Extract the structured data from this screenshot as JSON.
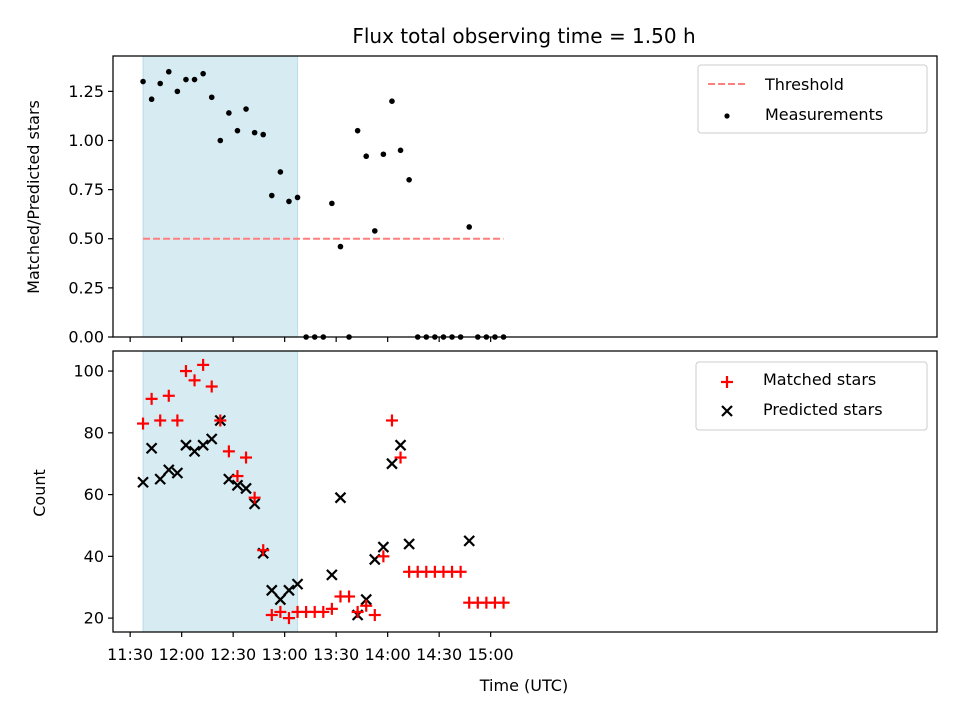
{
  "chart_data": [
    {
      "type": "scatter",
      "title": "Flux total observing time = 1.50 h",
      "xlabel": "",
      "ylabel": "Matched/Predicted stars",
      "xlim_minutes_since_midnight": [
        680,
        1160
      ],
      "ylim": [
        0,
        1.43
      ],
      "yticks": [
        0,
        0.25,
        0.5,
        0.75,
        1.0,
        1.25
      ],
      "ytick_labels": [
        "0.00",
        "0.25",
        "0.50",
        "0.75",
        "1.00",
        "1.25"
      ],
      "grid": false,
      "legend_position": "top-right",
      "shaded_interval": {
        "start": "11:37:30",
        "end": "13:07:30",
        "color": "#add8e6"
      },
      "threshold": {
        "name": "Threshold",
        "value": 0.5,
        "color": "#ff7f7f",
        "style": "dashed",
        "x_start": "11:37:30",
        "x_end": "15:07:30"
      },
      "series": [
        {
          "name": "Measurements",
          "color": "#000000",
          "marker": "dot",
          "x": [
            "11:37:30",
            "11:42:30",
            "11:47:30",
            "11:52:30",
            "11:57:30",
            "12:02:30",
            "12:07:30",
            "12:12:30",
            "12:17:30",
            "12:22:30",
            "12:27:30",
            "12:32:30",
            "12:37:30",
            "12:42:30",
            "12:47:30",
            "12:52:30",
            "12:57:30",
            "13:02:30",
            "13:07:30",
            "13:12:30",
            "13:17:30",
            "13:22:30",
            "13:27:30",
            "13:32:30",
            "13:37:30",
            "13:42:30",
            "13:47:30",
            "13:52:30",
            "13:57:30",
            "14:02:30",
            "14:07:30",
            "14:12:30",
            "14:17:30",
            "14:22:30",
            "14:27:30",
            "14:32:30",
            "14:37:30",
            "14:42:30",
            "14:47:30",
            "14:52:30",
            "14:57:30",
            "15:02:30",
            "15:07:30"
          ],
          "values": [
            1.3,
            1.21,
            1.29,
            1.35,
            1.25,
            1.31,
            1.31,
            1.34,
            1.22,
            1.0,
            1.14,
            1.05,
            1.16,
            1.04,
            1.03,
            0.72,
            0.84,
            0.69,
            0.71,
            0,
            0,
            0,
            0.68,
            0.46,
            0,
            1.05,
            0.92,
            0.54,
            0.93,
            1.2,
            0.95,
            0.8,
            0,
            0,
            0,
            0,
            0,
            0,
            0.56,
            0,
            0,
            0,
            0
          ]
        }
      ]
    },
    {
      "type": "scatter",
      "title": "",
      "xlabel": "Time (UTC)",
      "ylabel": "Count",
      "xlim_minutes_since_midnight": [
        680,
        1160
      ],
      "ylim": [
        15.5,
        106.5
      ],
      "yticks": [
        20,
        40,
        60,
        80,
        100
      ],
      "ytick_labels": [
        "20",
        "40",
        "60",
        "80",
        "100"
      ],
      "xticks": [
        "11:30",
        "12:00",
        "12:30",
        "13:00",
        "13:30",
        "14:00",
        "14:30",
        "15:00"
      ],
      "grid": false,
      "legend_position": "top-right",
      "shaded_interval": {
        "start": "11:37:30",
        "end": "13:07:30",
        "color": "#add8e6"
      },
      "series": [
        {
          "name": "Matched stars",
          "color": "#ff0000",
          "marker": "plus",
          "x": [
            "11:37:30",
            "11:42:30",
            "11:47:30",
            "11:52:30",
            "11:57:30",
            "12:02:30",
            "12:07:30",
            "12:12:30",
            "12:17:30",
            "12:22:30",
            "12:27:30",
            "12:32:30",
            "12:37:30",
            "12:42:30",
            "12:47:30",
            "12:52:30",
            "12:57:30",
            "13:02:30",
            "13:07:30",
            "13:12:30",
            "13:17:30",
            "13:22:30",
            "13:27:30",
            "13:32:30",
            "13:37:30",
            "13:42:30",
            "13:47:30",
            "13:52:30",
            "13:57:30",
            "14:02:30",
            "14:07:30",
            "14:12:30",
            "14:17:30",
            "14:22:30",
            "14:27:30",
            "14:32:30",
            "14:37:30",
            "14:42:30",
            "14:47:30",
            "14:52:30",
            "14:57:30",
            "15:02:30",
            "15:07:30"
          ],
          "values": [
            83,
            91,
            84,
            92,
            84,
            100,
            97,
            102,
            95,
            84,
            74,
            66,
            72,
            59,
            42,
            21,
            22,
            20,
            22,
            22,
            22,
            22,
            23,
            27,
            27,
            22,
            24,
            21,
            40,
            84,
            72,
            35,
            35,
            35,
            35,
            35,
            35,
            35,
            25,
            25,
            25,
            25,
            25
          ]
        },
        {
          "name": "Predicted stars",
          "color": "#000000",
          "marker": "x",
          "x": [
            "11:37:30",
            "11:42:30",
            "11:47:30",
            "11:52:30",
            "11:57:30",
            "12:02:30",
            "12:07:30",
            "12:12:30",
            "12:17:30",
            "12:22:30",
            "12:27:30",
            "12:32:30",
            "12:37:30",
            "12:42:30",
            "12:47:30",
            "12:52:30",
            "12:57:30",
            "13:02:30",
            "13:07:30",
            "13:27:30",
            "13:32:30",
            "13:42:30",
            "13:47:30",
            "13:52:30",
            "13:57:30",
            "14:02:30",
            "14:07:30",
            "14:12:30",
            "14:47:30"
          ],
          "values": [
            64,
            75,
            65,
            68,
            67,
            76,
            74,
            76,
            78,
            84,
            65,
            63,
            62,
            57,
            41,
            29,
            26,
            29,
            31,
            34,
            59,
            21,
            26,
            39,
            43,
            70,
            76,
            44,
            45
          ]
        }
      ]
    }
  ]
}
